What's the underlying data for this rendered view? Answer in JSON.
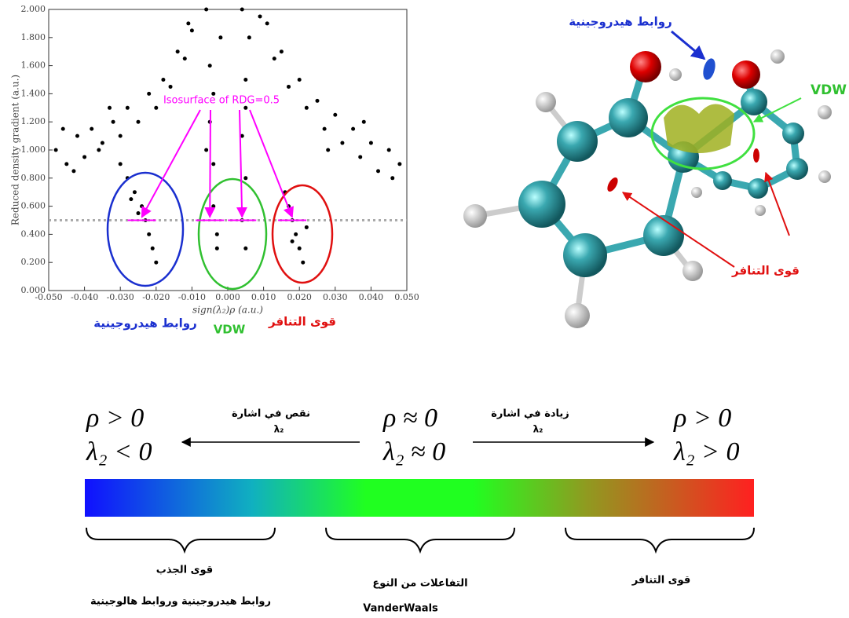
{
  "chart_data": {
    "type": "scatter",
    "ylabel": "Reduced density gradient (a.u.)",
    "xlabel": "sign(λ₂)ρ (a.u.)",
    "annotation": "Isosurface of RDG=0.5",
    "threshold": 0.5,
    "color": "#000000",
    "xlim": [
      -0.05,
      0.05
    ],
    "ylim": [
      0,
      2
    ],
    "xticks": [
      {
        "value": -0.05,
        "label": "-0.050"
      },
      {
        "value": -0.04,
        "label": "-0.040"
      },
      {
        "value": -0.03,
        "label": "-0.030"
      },
      {
        "value": -0.02,
        "label": "-0.020"
      },
      {
        "value": -0.01,
        "label": "-0.010"
      },
      {
        "value": 0,
        "label": "0.000"
      },
      {
        "value": 0.01,
        "label": "0.010"
      },
      {
        "value": 0.02,
        "label": "0.020"
      },
      {
        "value": 0.03,
        "label": "0.030"
      },
      {
        "value": 0.04,
        "label": "0.040"
      },
      {
        "value": 0.05,
        "label": "0.050"
      }
    ],
    "yticks": [
      {
        "value": 0,
        "label": "0.000"
      },
      {
        "value": 0.2,
        "label": "0.200"
      },
      {
        "value": 0.4,
        "label": "0.400"
      },
      {
        "value": 0.6,
        "label": "0.600"
      },
      {
        "value": 0.8,
        "label": "0.800"
      },
      {
        "value": 1,
        "label": "1.000"
      },
      {
        "value": 1.2,
        "label": "1.200"
      },
      {
        "value": 1.4,
        "label": "1.400"
      },
      {
        "value": 1.6,
        "label": "1.600"
      },
      {
        "value": 1.8,
        "label": "1.800"
      },
      {
        "value": 2,
        "label": "2.000"
      }
    ],
    "x": [
      -0.048,
      -0.045,
      -0.042,
      -0.04,
      -0.038,
      -0.035,
      -0.032,
      -0.03,
      -0.028,
      -0.025,
      -0.022,
      -0.02,
      -0.018,
      -0.016,
      -0.014,
      -0.012,
      -0.011,
      -0.01,
      -0.046,
      -0.043,
      -0.036,
      -0.033,
      0.048,
      0.045,
      0.042,
      0.04,
      0.037,
      0.035,
      0.032,
      0.03,
      0.027,
      0.025,
      0.022,
      0.02,
      0.017,
      0.015,
      0.013,
      0.011,
      0.009,
      0.046,
      0.038,
      0.028,
      -0.006,
      -0.005,
      -0.005,
      -0.004,
      -0.004,
      -0.003,
      -0.003,
      -0.002,
      -0.006,
      -0.004,
      0.004,
      0.005,
      0.004,
      0.005,
      0.004,
      0.005,
      0.006,
      0.005,
      -0.028,
      -0.026,
      -0.024,
      -0.023,
      -0.022,
      -0.021,
      -0.025,
      -0.02,
      -0.027,
      -0.03,
      0.017,
      0.018,
      0.019,
      0.02,
      0.021,
      0.016,
      0.018,
      0.022
    ],
    "y": [
      1.0,
      0.9,
      1.1,
      0.95,
      1.15,
      1.05,
      1.2,
      1.1,
      1.3,
      1.2,
      1.4,
      1.3,
      1.5,
      1.45,
      1.7,
      1.65,
      1.9,
      1.85,
      1.15,
      0.85,
      1.0,
      1.3,
      0.9,
      1.0,
      0.85,
      1.05,
      0.95,
      1.15,
      1.05,
      1.25,
      1.15,
      1.35,
      1.3,
      1.5,
      1.45,
      1.7,
      1.65,
      1.9,
      1.95,
      0.8,
      1.2,
      1.0,
      2.0,
      1.6,
      1.2,
      0.9,
      0.6,
      0.4,
      0.3,
      1.8,
      1.0,
      1.4,
      2.0,
      1.5,
      1.1,
      0.8,
      0.5,
      0.3,
      1.8,
      1.3,
      0.8,
      0.7,
      0.6,
      0.5,
      0.4,
      0.3,
      0.55,
      0.2,
      0.65,
      0.9,
      0.6,
      0.5,
      0.4,
      0.3,
      0.2,
      0.7,
      0.35,
      0.45
    ],
    "regions": [
      {
        "label": "روابط هيدروجينية",
        "color": "#1a2fcf"
      },
      {
        "label": "VDW",
        "color": "#30c030"
      },
      {
        "label": "قوى التنافر",
        "color": "#e01010"
      }
    ]
  },
  "molecule": {
    "hbond": "روابط هيدروجينية",
    "vdw": "VDW",
    "repulsion": "قوى التنافر"
  },
  "scale": {
    "left": {
      "rho": "ρ > 0",
      "lambda": "λ₂ < 0"
    },
    "center": {
      "rho": "ρ ≈ 0",
      "lambda": "λ₂ ≈ 0"
    },
    "right": {
      "rho": "ρ > 0",
      "lambda": "λ₂ > 0"
    },
    "left_arrow": {
      "text": "نقص في اشارة",
      "symbol": "λ₂"
    },
    "right_arrow": {
      "text": "زيادة في اشارة",
      "symbol": "λ₂"
    },
    "bottom": {
      "attraction": "قوى الجذب",
      "attraction_detail": "روابط هيدروجينية وروابط هالوجينية",
      "vdw_type": "التفاعلات من النوع",
      "vdw_name": "VanderWaals",
      "repulsion": "قوى التنافر"
    }
  }
}
